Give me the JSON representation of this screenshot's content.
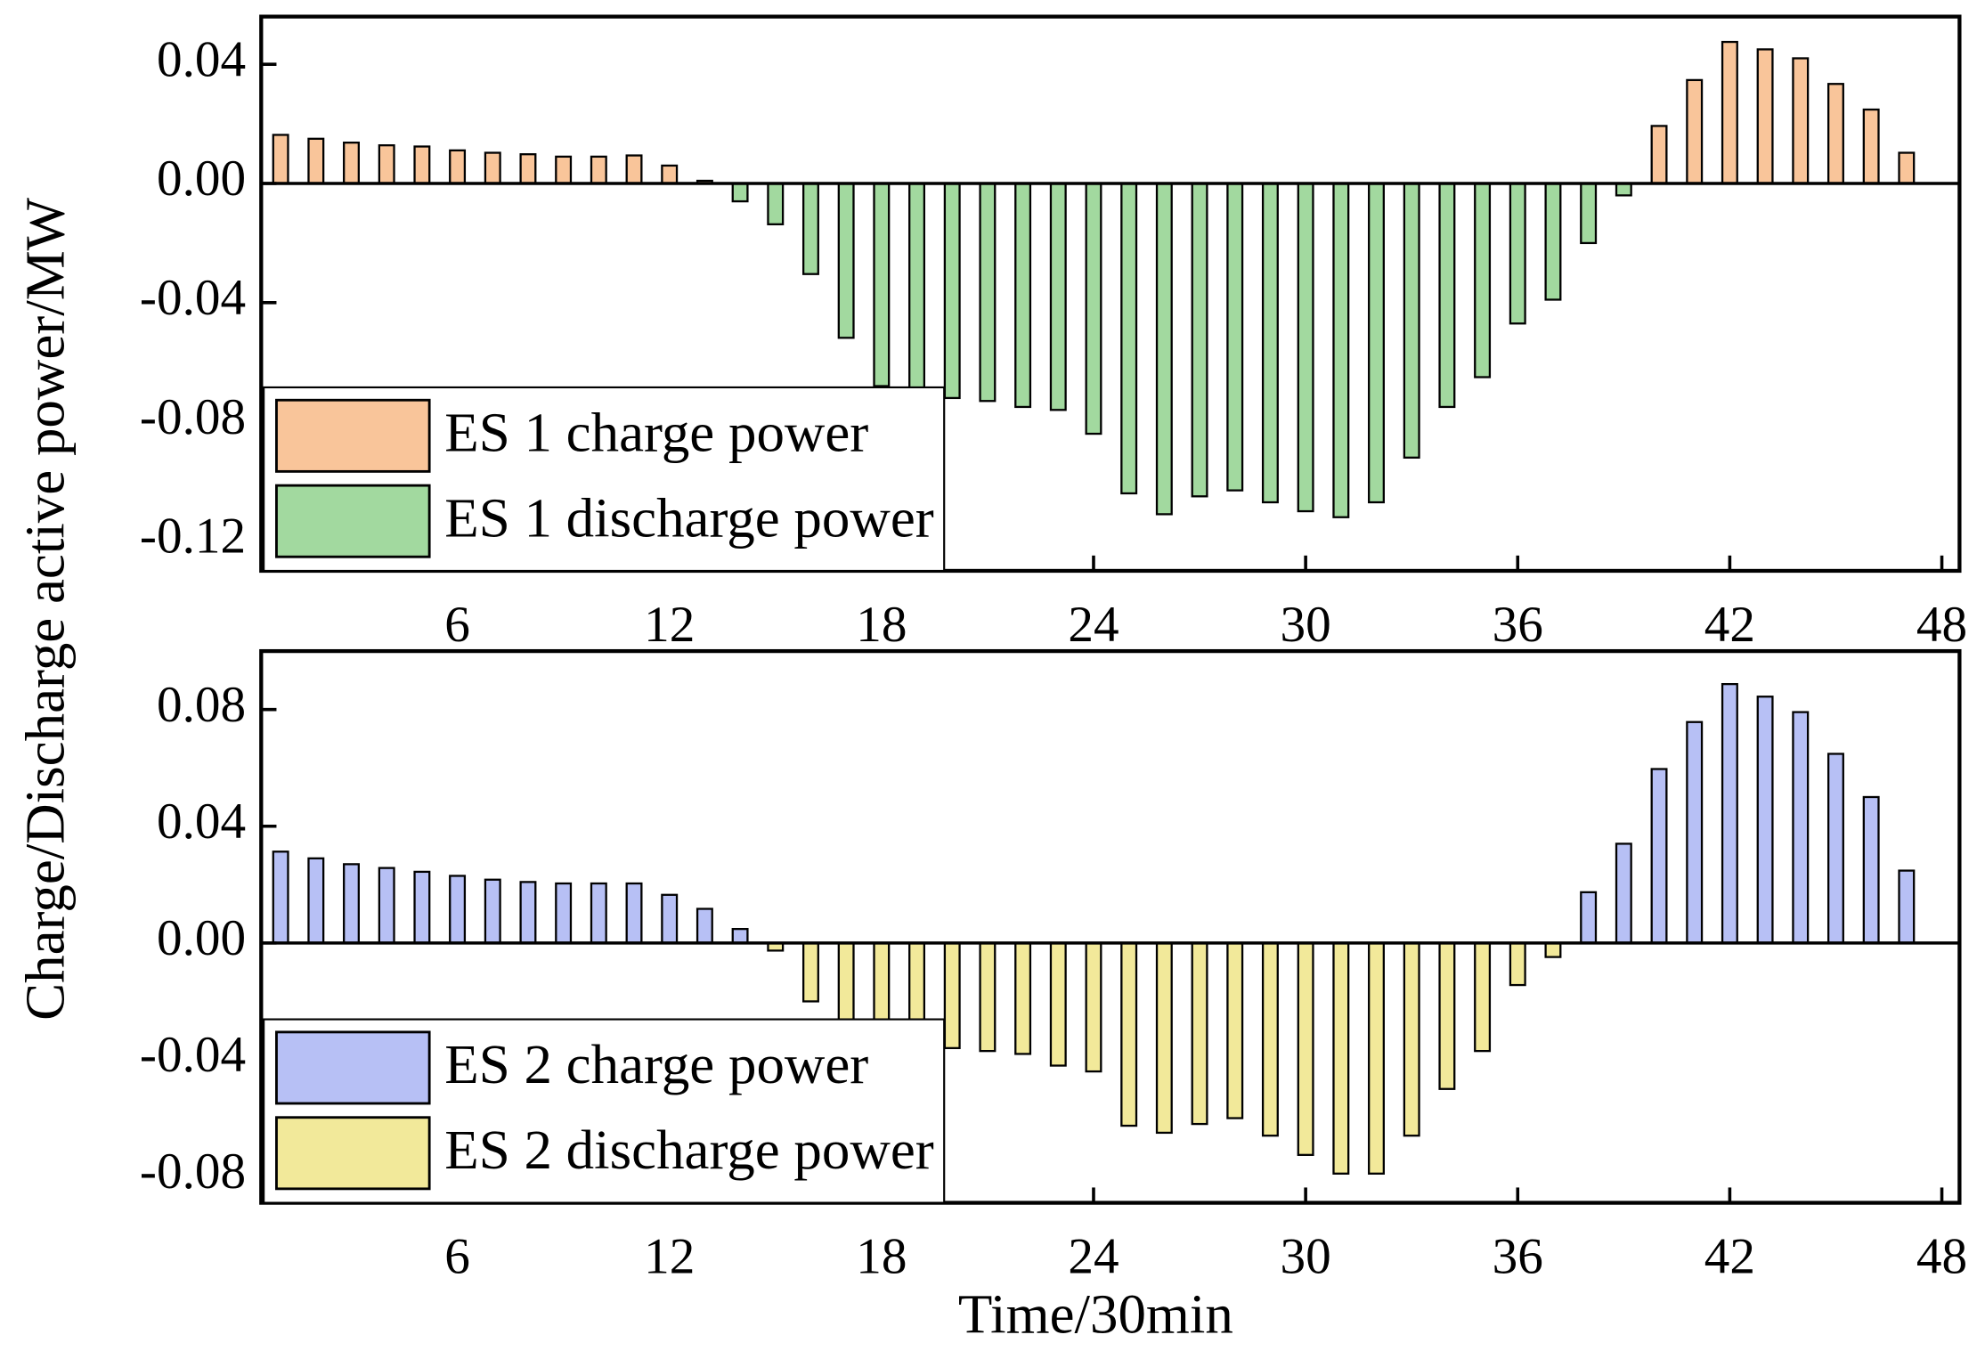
{
  "chart_data": [
    {
      "type": "bar",
      "ylabel": "Charge/Discharge active power/MW",
      "x": [
        1,
        2,
        3,
        4,
        5,
        6,
        7,
        8,
        9,
        10,
        11,
        12,
        13,
        14,
        15,
        16,
        17,
        18,
        19,
        20,
        21,
        22,
        23,
        24,
        25,
        26,
        27,
        28,
        29,
        30,
        31,
        32,
        33,
        34,
        35,
        36,
        37,
        38,
        39,
        40,
        41,
        42,
        43,
        44,
        45,
        46,
        47
      ],
      "series": [
        {
          "name": "ES 1 charge power",
          "color": "#f9c59a",
          "values": [
            0.0163,
            0.015,
            0.0137,
            0.0128,
            0.0124,
            0.0111,
            0.0103,
            0.0098,
            0.009,
            0.009,
            0.0094,
            0.006,
            0.0009,
            null,
            null,
            null,
            null,
            null,
            null,
            null,
            null,
            null,
            null,
            null,
            null,
            null,
            null,
            null,
            null,
            null,
            null,
            null,
            null,
            null,
            null,
            null,
            null,
            null,
            null,
            0.0193,
            0.0347,
            0.0475,
            0.045,
            0.042,
            0.0334,
            0.0248,
            0.0103
          ]
        },
        {
          "name": "ES 1 discharge power",
          "color": "#a2d99f",
          "values": [
            null,
            null,
            null,
            null,
            null,
            null,
            null,
            null,
            null,
            null,
            null,
            null,
            null,
            -0.006,
            -0.0137,
            -0.0304,
            -0.0518,
            -0.068,
            -0.07,
            -0.072,
            -0.073,
            -0.075,
            -0.076,
            -0.084,
            -0.104,
            -0.111,
            -0.105,
            -0.103,
            -0.107,
            -0.11,
            -0.112,
            -0.107,
            -0.092,
            -0.075,
            -0.065,
            -0.047,
            -0.039,
            -0.02,
            -0.004,
            null,
            null,
            null,
            null,
            null,
            null,
            null,
            null
          ]
        }
      ],
      "xlim": [
        0.45,
        48.5
      ],
      "xticks": [
        6,
        12,
        18,
        24,
        30,
        36,
        42,
        48
      ],
      "ylim": [
        -0.13,
        0.056
      ],
      "yticks": [
        0.04,
        {
          "value": 0,
          "label": "0.00"
        },
        -0.04,
        -0.08,
        -0.12
      ],
      "legend": "lower left"
    },
    {
      "type": "bar",
      "xlabel": "Time/30min",
      "x": [
        1,
        2,
        3,
        4,
        5,
        6,
        7,
        8,
        9,
        10,
        11,
        12,
        13,
        14,
        15,
        16,
        17,
        18,
        19,
        20,
        21,
        22,
        23,
        24,
        25,
        26,
        27,
        28,
        29,
        30,
        31,
        32,
        33,
        34,
        35,
        36,
        37,
        38,
        39,
        40,
        41,
        42,
        43,
        44,
        45,
        46,
        47
      ],
      "series": [
        {
          "name": "ES 2 charge power",
          "color": "#b7c0f5",
          "values": [
            0.0313,
            0.029,
            0.027,
            0.0257,
            0.0244,
            0.023,
            0.0217,
            0.0209,
            0.0204,
            0.0204,
            0.0204,
            0.0165,
            0.0117,
            0.0048,
            null,
            null,
            null,
            null,
            null,
            null,
            null,
            null,
            null,
            null,
            null,
            null,
            null,
            null,
            null,
            null,
            null,
            null,
            null,
            null,
            null,
            null,
            null,
            0.0174,
            0.034,
            0.0596,
            0.0757,
            0.0887,
            0.0844,
            0.0791,
            0.0648,
            0.05,
            0.0248
          ]
        },
        {
          "name": "ES 2 discharge power",
          "color": "#f2e99a",
          "values": [
            null,
            null,
            null,
            null,
            null,
            null,
            null,
            null,
            null,
            null,
            null,
            null,
            null,
            null,
            -0.0026,
            -0.02,
            -0.03,
            -0.033,
            -0.035,
            -0.036,
            -0.037,
            -0.038,
            -0.042,
            -0.044,
            -0.0626,
            -0.065,
            -0.062,
            -0.06,
            -0.066,
            -0.0726,
            -0.079,
            -0.079,
            -0.066,
            -0.05,
            -0.037,
            -0.0144,
            -0.0048,
            null,
            null,
            null,
            null,
            null,
            null,
            null,
            null,
            null,
            null
          ]
        }
      ],
      "xlim": [
        0.45,
        48.5
      ],
      "xticks": [
        6,
        12,
        18,
        24,
        30,
        36,
        42,
        48
      ],
      "ylim": [
        -0.089,
        0.1
      ],
      "yticks": [
        0.08,
        0.04,
        {
          "value": 0,
          "label": "0.00"
        },
        -0.04,
        -0.08
      ],
      "legend": "lower left"
    }
  ]
}
